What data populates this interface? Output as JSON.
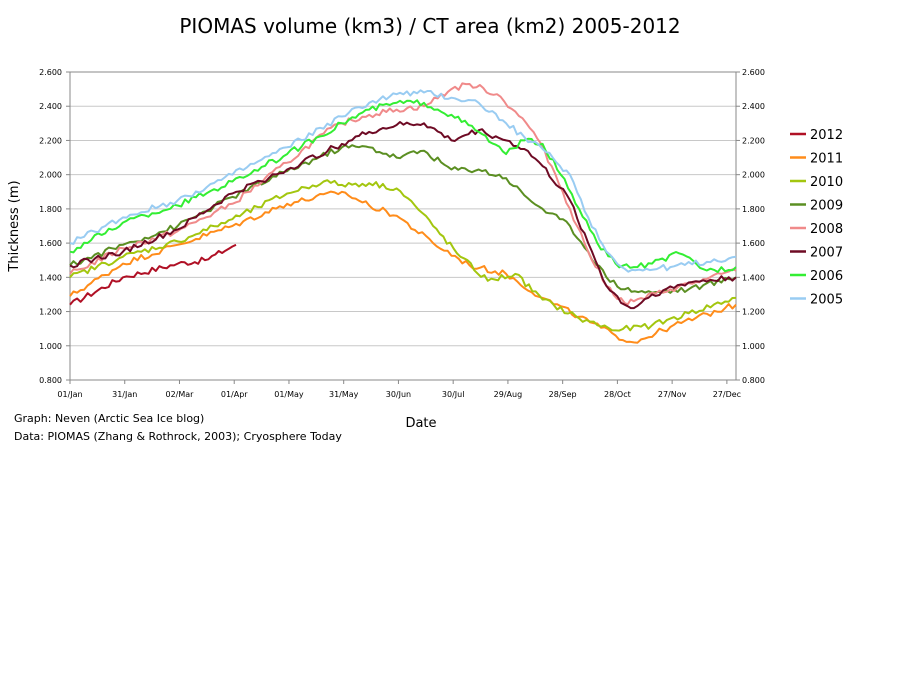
{
  "chart_data": {
    "type": "line",
    "title": "PIOMAS volume (km3) / CT area (km2) 2005-2012",
    "xlabel": "Date",
    "ylabel": "Thickness (m)",
    "ylim": [
      0.8,
      2.6
    ],
    "yticks": [
      "0.800",
      "1.000",
      "1.200",
      "1.400",
      "1.600",
      "1.800",
      "2.000",
      "2.200",
      "2.400",
      "2.600"
    ],
    "xticks": [
      "01/Jan",
      "31/Jan",
      "02/Mar",
      "01/Apr",
      "01/May",
      "31/May",
      "30/Jun",
      "30/Jul",
      "29/Aug",
      "28/Sep",
      "28/Oct",
      "27/Nov",
      "27/Dec"
    ],
    "xtick_days": [
      1,
      31,
      61,
      91,
      121,
      151,
      181,
      211,
      241,
      271,
      301,
      331,
      361
    ],
    "xlim": [
      1,
      366
    ],
    "grid": "horizontal",
    "legend_position": "right",
    "credits": [
      "Graph: Neven (Arctic Sea Ice blog)",
      "Data: PIOMAS (Zhang & Rothrock, 2003); Cryosphere Today"
    ],
    "series": [
      {
        "name": "2012",
        "color": "#b01025",
        "x": [
          1,
          30,
          60,
          75,
          90,
          92
        ],
        "y": [
          1.24,
          1.4,
          1.48,
          1.5,
          1.58,
          1.59
        ]
      },
      {
        "name": "2011",
        "color": "#ff8c1a",
        "x": [
          1,
          30,
          60,
          90,
          120,
          150,
          165,
          180,
          200,
          220,
          240,
          260,
          280,
          300,
          310,
          330,
          360,
          366
        ],
        "y": [
          1.29,
          1.48,
          1.59,
          1.7,
          1.83,
          1.9,
          1.82,
          1.76,
          1.6,
          1.47,
          1.42,
          1.28,
          1.17,
          1.06,
          1.02,
          1.11,
          1.22,
          1.24
        ]
      },
      {
        "name": "2010",
        "color": "#a3c60f",
        "x": [
          1,
          30,
          60,
          90,
          120,
          140,
          150,
          165,
          180,
          190,
          200,
          215,
          230,
          245,
          260,
          280,
          300,
          320,
          340,
          366
        ],
        "y": [
          1.4,
          1.52,
          1.61,
          1.74,
          1.89,
          1.96,
          1.94,
          1.95,
          1.92,
          1.82,
          1.7,
          1.52,
          1.38,
          1.42,
          1.27,
          1.16,
          1.09,
          1.12,
          1.19,
          1.28
        ]
      },
      {
        "name": "2009",
        "color": "#5b8f22",
        "x": [
          1,
          30,
          60,
          90,
          120,
          150,
          165,
          180,
          195,
          210,
          225,
          240,
          250,
          260,
          275,
          285,
          295,
          305,
          320,
          340,
          366
        ],
        "y": [
          1.47,
          1.59,
          1.7,
          1.87,
          2.02,
          2.16,
          2.16,
          2.1,
          2.14,
          2.03,
          2.03,
          1.98,
          1.88,
          1.8,
          1.7,
          1.55,
          1.4,
          1.33,
          1.31,
          1.33,
          1.4
        ]
      },
      {
        "name": "2008",
        "color": "#f08a8a",
        "x": [
          1,
          30,
          60,
          90,
          120,
          140,
          150,
          165,
          180,
          195,
          210,
          220,
          235,
          245,
          255,
          265,
          275,
          285,
          295,
          305,
          310,
          330,
          350,
          366
        ],
        "y": [
          1.42,
          1.57,
          1.67,
          1.83,
          2.07,
          2.24,
          2.3,
          2.35,
          2.38,
          2.4,
          2.5,
          2.53,
          2.47,
          2.37,
          2.25,
          2.05,
          1.8,
          1.55,
          1.35,
          1.25,
          1.26,
          1.33,
          1.39,
          1.44
        ]
      },
      {
        "name": "2007",
        "color": "#6e0a24",
        "x": [
          1,
          30,
          60,
          90,
          120,
          150,
          165,
          180,
          195,
          210,
          225,
          240,
          250,
          260,
          275,
          285,
          295,
          305,
          310,
          320,
          340,
          366
        ],
        "y": [
          1.47,
          1.55,
          1.68,
          1.89,
          2.03,
          2.18,
          2.25,
          2.29,
          2.3,
          2.2,
          2.26,
          2.2,
          2.15,
          2.05,
          1.85,
          1.6,
          1.35,
          1.24,
          1.22,
          1.3,
          1.37,
          1.4
        ]
      },
      {
        "name": "2006",
        "color": "#33ee33",
        "x": [
          1,
          30,
          60,
          90,
          120,
          150,
          165,
          180,
          195,
          210,
          225,
          240,
          250,
          260,
          270,
          280,
          290,
          300,
          310,
          320,
          335,
          350,
          366
        ],
        "y": [
          1.55,
          1.72,
          1.82,
          1.96,
          2.12,
          2.3,
          2.38,
          2.42,
          2.42,
          2.35,
          2.25,
          2.12,
          2.2,
          2.18,
          2.0,
          1.8,
          1.6,
          1.48,
          1.46,
          1.48,
          1.54,
          1.44,
          1.46
        ]
      },
      {
        "name": "2005",
        "color": "#99ccf2",
        "x": [
          1,
          30,
          60,
          90,
          120,
          150,
          165,
          180,
          195,
          210,
          225,
          240,
          250,
          260,
          275,
          285,
          295,
          305,
          315,
          330,
          350,
          366
        ],
        "y": [
          1.6,
          1.75,
          1.85,
          2.0,
          2.16,
          2.34,
          2.42,
          2.47,
          2.48,
          2.45,
          2.42,
          2.3,
          2.22,
          2.15,
          2.0,
          1.75,
          1.55,
          1.45,
          1.44,
          1.46,
          1.49,
          1.52
        ]
      }
    ]
  }
}
